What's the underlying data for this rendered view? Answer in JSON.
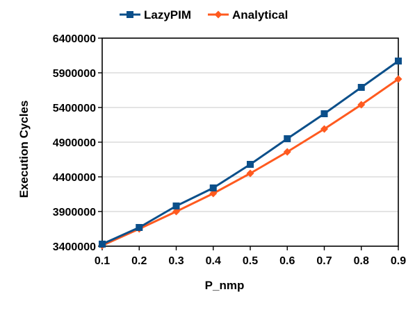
{
  "chart_data": {
    "type": "line",
    "title": "",
    "xlabel": "P_nmp",
    "ylabel": "Execution Cycles",
    "x": [
      0.1,
      0.2,
      0.3,
      0.4,
      0.5,
      0.6,
      0.7,
      0.8,
      0.9
    ],
    "x_tick_labels": [
      "0.1",
      "0.2",
      "0.3",
      "0.4",
      "0.5",
      "0.6",
      "0.7",
      "0.8",
      "0.9"
    ],
    "xlim": [
      0.1,
      0.9
    ],
    "ylim": [
      3400000,
      6400000
    ],
    "y_ticks": [
      3400000,
      3900000,
      4400000,
      4900000,
      5400000,
      5900000,
      6400000
    ],
    "y_tick_labels": [
      "3400000",
      "3900000",
      "4400000",
      "4900000",
      "5400000",
      "5900000",
      "6400000"
    ],
    "grid": "horizontal",
    "legend_position": "top",
    "series": [
      {
        "name": "LazyPIM",
        "marker": "square",
        "color": "#0b4f8a",
        "values": [
          3430000,
          3670000,
          3980000,
          4240000,
          4580000,
          4950000,
          5310000,
          5690000,
          6070000
        ]
      },
      {
        "name": "Analytical",
        "marker": "diamond",
        "color": "#ff5a1f",
        "values": [
          3410000,
          3650000,
          3900000,
          4160000,
          4450000,
          4760000,
          5090000,
          5440000,
          5810000
        ]
      }
    ]
  }
}
